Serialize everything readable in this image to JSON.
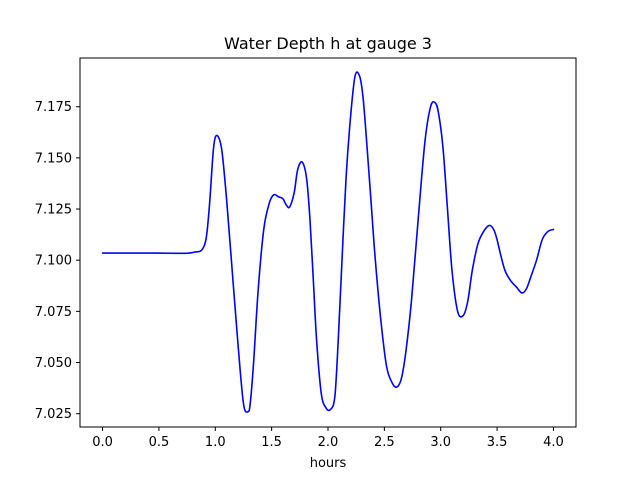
{
  "chart_data": {
    "type": "line",
    "title": "Water Depth h at gauge 3",
    "xlabel": "hours",
    "ylabel": "",
    "xlim": [
      -0.2,
      4.2
    ],
    "ylim": [
      7.0185,
      7.1988
    ],
    "grid": false,
    "xticks": [
      0.0,
      0.5,
      1.0,
      1.5,
      2.0,
      2.5,
      3.0,
      3.5,
      4.0
    ],
    "xtick_labels": [
      "0.0",
      "0.5",
      "1.0",
      "1.5",
      "2.0",
      "2.5",
      "3.0",
      "3.5",
      "4.0"
    ],
    "yticks": [
      7.025,
      7.05,
      7.075,
      7.1,
      7.125,
      7.15,
      7.175
    ],
    "ytick_labels": [
      "7.025",
      "7.050",
      "7.075",
      "7.100",
      "7.125",
      "7.150",
      "7.175"
    ],
    "series": [
      {
        "color": "#0000ff",
        "x": [
          0.0,
          0.2,
          0.4,
          0.6,
          0.75,
          0.82,
          0.88,
          0.92,
          0.95,
          0.98,
          1.0,
          1.03,
          1.06,
          1.1,
          1.15,
          1.2,
          1.25,
          1.29,
          1.31,
          1.34,
          1.38,
          1.43,
          1.48,
          1.52,
          1.56,
          1.6,
          1.63,
          1.66,
          1.7,
          1.73,
          1.77,
          1.81,
          1.84,
          1.87,
          1.9,
          1.94,
          1.98,
          2.02,
          2.06,
          2.09,
          2.12,
          2.16,
          2.2,
          2.24,
          2.28,
          2.31,
          2.34,
          2.38,
          2.42,
          2.47,
          2.52,
          2.57,
          2.61,
          2.65,
          2.69,
          2.74,
          2.8,
          2.86,
          2.91,
          2.95,
          2.98,
          3.02,
          3.06,
          3.1,
          3.15,
          3.2,
          3.24,
          3.28,
          3.33,
          3.38,
          3.43,
          3.47,
          3.5,
          3.53,
          3.57,
          3.62,
          3.67,
          3.72,
          3.76,
          3.8,
          3.85,
          3.9,
          3.95,
          4.0
        ],
        "y": [
          7.1035,
          7.1035,
          7.1035,
          7.1034,
          7.1034,
          7.104,
          7.105,
          7.111,
          7.128,
          7.152,
          7.16,
          7.16,
          7.153,
          7.13,
          7.095,
          7.06,
          7.03,
          7.026,
          7.03,
          7.05,
          7.085,
          7.115,
          7.128,
          7.132,
          7.131,
          7.13,
          7.127,
          7.126,
          7.133,
          7.144,
          7.148,
          7.14,
          7.12,
          7.09,
          7.06,
          7.035,
          7.028,
          7.027,
          7.033,
          7.06,
          7.095,
          7.14,
          7.17,
          7.19,
          7.19,
          7.18,
          7.16,
          7.13,
          7.1,
          7.07,
          7.048,
          7.04,
          7.038,
          7.042,
          7.055,
          7.08,
          7.12,
          7.158,
          7.175,
          7.177,
          7.172,
          7.155,
          7.125,
          7.095,
          7.075,
          7.073,
          7.08,
          7.095,
          7.108,
          7.114,
          7.117,
          7.115,
          7.11,
          7.103,
          7.095,
          7.09,
          7.087,
          7.084,
          7.086,
          7.092,
          7.1,
          7.11,
          7.114,
          7.115
        ]
      }
    ]
  }
}
